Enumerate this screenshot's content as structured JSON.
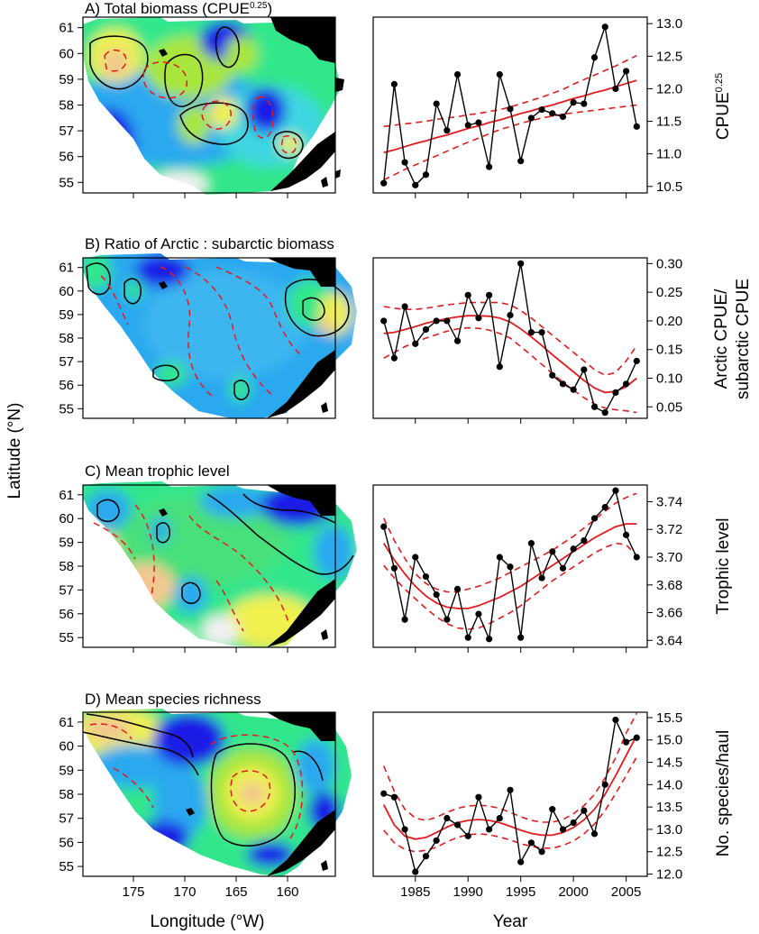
{
  "figure": {
    "ylabel": "Latitude (°N)",
    "map_xlabel": "Longitude (°W)",
    "ts_xlabel": "Year",
    "map_lat_ticks": [
      "61",
      "60",
      "59",
      "58",
      "57",
      "56",
      "55"
    ],
    "map_lon_ticks": [
      "175",
      "170",
      "165",
      "160"
    ],
    "year_ticks": [
      "1985",
      "1990",
      "1995",
      "2000",
      "2005"
    ],
    "colors": {
      "observed_line": "#000000",
      "trend_line": "#e41a1c",
      "confidence_band": "#e41a1c",
      "land": "#000000",
      "map_scale": [
        "#1a1ae6",
        "#2aa8f0",
        "#5ad2f5",
        "#33e68c",
        "#a8e63c",
        "#f0f050",
        "#f2c890"
      ]
    }
  },
  "chart_data": [
    {
      "type": "line",
      "panel": "A",
      "title": "A) Total biomass (CPUE",
      "title_sup": "0.25",
      "title_end": ")",
      "ylabel": "CPUE",
      "ylabel_sup": "0.25",
      "ylim": [
        10.4,
        13.1
      ],
      "yticks": [
        "13.0",
        "12.5",
        "12.0",
        "11.5",
        "11.0",
        "10.5"
      ],
      "ytick_values": [
        13.0,
        12.5,
        12.0,
        11.5,
        11.0,
        10.5
      ],
      "x": [
        1982,
        1983,
        1984,
        1985,
        1986,
        1987,
        1988,
        1989,
        1990,
        1991,
        1992,
        1993,
        1994,
        1995,
        1996,
        1997,
        1998,
        1999,
        2000,
        2001,
        2002,
        2003,
        2004,
        2005,
        2006
      ],
      "observed": [
        10.55,
        12.07,
        10.87,
        10.52,
        10.68,
        11.77,
        11.36,
        12.22,
        11.44,
        11.48,
        10.8,
        12.22,
        11.69,
        10.89,
        11.55,
        11.68,
        11.62,
        11.57,
        11.79,
        11.77,
        12.48,
        12.95,
        12.0,
        12.27,
        11.42
      ],
      "trend": [
        11.02,
        11.06,
        11.11,
        11.16,
        11.2,
        11.25,
        11.29,
        11.34,
        11.39,
        11.43,
        11.48,
        11.52,
        11.57,
        11.62,
        11.66,
        11.71,
        11.75,
        11.8,
        11.85,
        11.89,
        11.94,
        11.98,
        12.03,
        12.08,
        12.13
      ],
      "lower": [
        10.6,
        10.68,
        10.76,
        10.83,
        10.9,
        10.97,
        11.04,
        11.11,
        11.18,
        11.24,
        11.31,
        11.37,
        11.42,
        11.47,
        11.51,
        11.55,
        11.58,
        11.61,
        11.63,
        11.65,
        11.67,
        11.69,
        11.71,
        11.73,
        11.75
      ],
      "upper": [
        11.42,
        11.44,
        11.46,
        11.48,
        11.5,
        11.53,
        11.55,
        11.57,
        11.6,
        11.62,
        11.65,
        11.68,
        11.72,
        11.77,
        11.82,
        11.87,
        11.93,
        11.99,
        12.07,
        12.14,
        12.21,
        12.28,
        12.35,
        12.43,
        12.51
      ]
    },
    {
      "type": "line",
      "panel": "B",
      "title": "B) Ratio of Arctic : subarctic biomass",
      "title_sup": "",
      "title_end": "",
      "ylabel": "Arctic CPUE/",
      "ylabel2": "subarctic CPUE",
      "ylim": [
        0.03,
        0.31
      ],
      "yticks": [
        "0.30",
        "0.25",
        "0.20",
        "0.15",
        "0.10",
        "0.05"
      ],
      "ytick_values": [
        0.3,
        0.25,
        0.2,
        0.15,
        0.1,
        0.05
      ],
      "x": [
        1982,
        1983,
        1984,
        1985,
        1986,
        1987,
        1988,
        1989,
        1990,
        1991,
        1992,
        1993,
        1994,
        1995,
        1996,
        1997,
        1998,
        1999,
        2000,
        2001,
        2002,
        2003,
        2004,
        2005,
        2006
      ],
      "observed": [
        0.2,
        0.135,
        0.225,
        0.16,
        0.185,
        0.2,
        0.2,
        0.165,
        0.245,
        0.205,
        0.245,
        0.12,
        0.21,
        0.3,
        0.18,
        0.18,
        0.105,
        0.09,
        0.08,
        0.115,
        0.05,
        0.04,
        0.075,
        0.09,
        0.13
      ],
      "trend": [
        0.178,
        0.18,
        0.185,
        0.19,
        0.196,
        0.2,
        0.204,
        0.207,
        0.209,
        0.209,
        0.208,
        0.205,
        0.198,
        0.186,
        0.172,
        0.157,
        0.141,
        0.126,
        0.111,
        0.096,
        0.083,
        0.075,
        0.077,
        0.085,
        0.1
      ],
      "lower": [
        0.135,
        0.145,
        0.155,
        0.163,
        0.17,
        0.176,
        0.182,
        0.186,
        0.188,
        0.187,
        0.184,
        0.178,
        0.17,
        0.155,
        0.14,
        0.124,
        0.108,
        0.093,
        0.079,
        0.066,
        0.055,
        0.048,
        0.045,
        0.043,
        0.04
      ],
      "upper": [
        0.225,
        0.222,
        0.22,
        0.22,
        0.222,
        0.225,
        0.228,
        0.23,
        0.232,
        0.232,
        0.232,
        0.232,
        0.228,
        0.218,
        0.205,
        0.19,
        0.175,
        0.16,
        0.145,
        0.13,
        0.115,
        0.105,
        0.11,
        0.13,
        0.157
      ]
    },
    {
      "type": "line",
      "panel": "C",
      "title": "C) Mean trophic level",
      "title_sup": "",
      "title_end": "",
      "ylabel": "Trophic level",
      "ylim": [
        3.635,
        3.752
      ],
      "yticks": [
        "3.74",
        "3.72",
        "3.70",
        "3.68",
        "3.66",
        "3.64"
      ],
      "ytick_values": [
        3.74,
        3.72,
        3.7,
        3.68,
        3.66,
        3.64
      ],
      "x": [
        1982,
        1983,
        1984,
        1985,
        1986,
        1987,
        1988,
        1989,
        1990,
        1991,
        1992,
        1993,
        1994,
        1995,
        1996,
        1997,
        1998,
        1999,
        2000,
        2001,
        2002,
        2003,
        2004,
        2005,
        2006
      ],
      "observed": [
        3.722,
        3.692,
        3.655,
        3.7,
        3.686,
        3.673,
        3.655,
        3.677,
        3.642,
        3.659,
        3.641,
        3.7,
        3.693,
        3.642,
        3.71,
        3.685,
        3.704,
        3.692,
        3.706,
        3.712,
        3.728,
        3.736,
        3.748,
        3.716,
        3.7
      ],
      "trend": [
        3.71,
        3.698,
        3.688,
        3.679,
        3.672,
        3.667,
        3.664,
        3.663,
        3.663,
        3.665,
        3.668,
        3.671,
        3.675,
        3.679,
        3.684,
        3.689,
        3.694,
        3.699,
        3.704,
        3.709,
        3.714,
        3.718,
        3.722,
        3.724,
        3.724
      ],
      "lower": [
        3.694,
        3.685,
        3.677,
        3.67,
        3.663,
        3.657,
        3.652,
        3.649,
        3.648,
        3.649,
        3.652,
        3.656,
        3.66,
        3.665,
        3.671,
        3.677,
        3.683,
        3.688,
        3.693,
        3.698,
        3.703,
        3.707,
        3.71,
        3.709,
        3.701
      ],
      "upper": [
        3.728,
        3.712,
        3.699,
        3.688,
        3.681,
        3.677,
        3.675,
        3.675,
        3.677,
        3.679,
        3.682,
        3.685,
        3.689,
        3.693,
        3.697,
        3.701,
        3.705,
        3.71,
        3.715,
        3.721,
        3.727,
        3.733,
        3.739,
        3.743,
        3.746
      ]
    },
    {
      "type": "line",
      "panel": "D",
      "title": "D) Mean species richness",
      "title_sup": "",
      "title_end": "",
      "ylabel": "No. species/haul",
      "ylim": [
        11.95,
        15.62
      ],
      "yticks": [
        "15.5",
        "15.0",
        "14.5",
        "14.0",
        "13.5",
        "13.0",
        "12.5",
        "12.0"
      ],
      "ytick_values": [
        15.5,
        15.0,
        14.5,
        14.0,
        13.5,
        13.0,
        12.5,
        12.0
      ],
      "x": [
        1982,
        1983,
        1984,
        1985,
        1986,
        1987,
        1988,
        1989,
        1990,
        1991,
        1992,
        1993,
        1994,
        1995,
        1996,
        1997,
        1998,
        1999,
        2000,
        2001,
        2002,
        2003,
        2004,
        2005,
        2006
      ],
      "observed": [
        13.8,
        13.72,
        13.0,
        12.05,
        12.4,
        12.75,
        13.25,
        13.1,
        12.85,
        13.72,
        13.0,
        13.25,
        13.88,
        12.27,
        12.7,
        12.5,
        13.45,
        13.0,
        13.15,
        13.42,
        12.9,
        14.0,
        15.45,
        14.95,
        15.05
      ],
      "trend": [
        13.55,
        13.1,
        12.85,
        12.78,
        12.82,
        12.93,
        13.05,
        13.15,
        13.2,
        13.22,
        13.2,
        13.15,
        13.07,
        12.98,
        12.91,
        12.87,
        12.87,
        12.93,
        13.04,
        13.21,
        13.45,
        13.78,
        14.2,
        14.65,
        15.1
      ],
      "lower": [
        12.98,
        12.7,
        12.55,
        12.5,
        12.53,
        12.6,
        12.72,
        12.82,
        12.88,
        12.9,
        12.88,
        12.83,
        12.76,
        12.68,
        12.62,
        12.58,
        12.58,
        12.64,
        12.74,
        12.9,
        13.12,
        13.42,
        13.8,
        14.2,
        14.62
      ],
      "upper": [
        14.42,
        13.85,
        13.45,
        13.25,
        13.2,
        13.27,
        13.38,
        13.47,
        13.52,
        13.54,
        13.52,
        13.47,
        13.38,
        13.28,
        13.2,
        13.16,
        13.16,
        13.22,
        13.35,
        13.53,
        13.78,
        14.15,
        14.6,
        15.15,
        15.6
      ]
    }
  ]
}
